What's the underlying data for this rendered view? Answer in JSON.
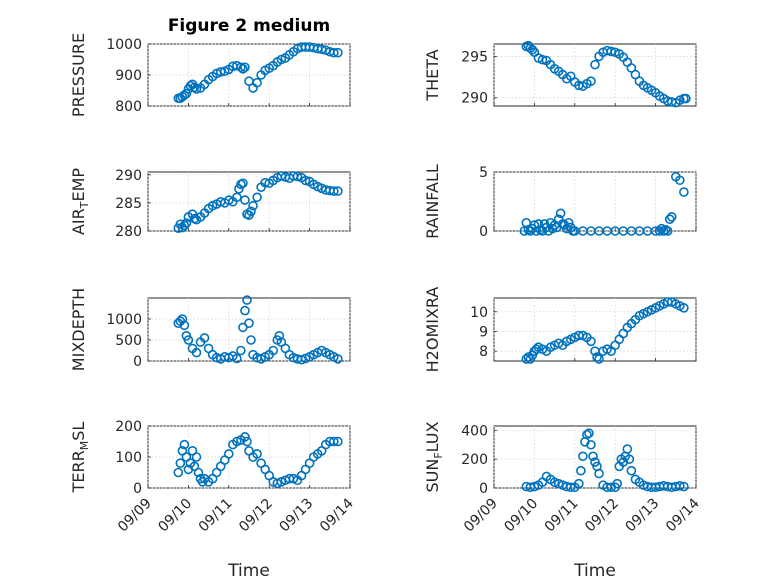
{
  "colors": {
    "marker": "#0072BD",
    "axis": "#262626",
    "grid": "#d0d0d0"
  },
  "chart_data": [
    {
      "type": "scatter",
      "title": "Figure 2 medium",
      "ylabel": "PRESSURE",
      "xlabel": "",
      "xticks": [
        "09/09",
        "09/10",
        "09/11",
        "09/12",
        "09/13",
        "09/14"
      ],
      "ylim": [
        800,
        1000
      ],
      "yticks": [
        800,
        900,
        1000
      ],
      "show_xticklabels": false,
      "grid": true,
      "series": [
        {
          "x": [
            9.75,
            9.8,
            9.85,
            9.9,
            9.95,
            10.0,
            10.05,
            10.1,
            10.15,
            10.2,
            10.3,
            10.4,
            10.5,
            10.6,
            10.7,
            10.8,
            10.9,
            11.0,
            11.1,
            11.2,
            11.3,
            11.35,
            11.4,
            11.5,
            11.6,
            11.7,
            11.8,
            11.9,
            12.0,
            12.1,
            12.2,
            12.3,
            12.4,
            12.5,
            12.6,
            12.7,
            12.8,
            12.9,
            13.0,
            13.1,
            13.2,
            13.3,
            13.4,
            13.5,
            13.6,
            13.7
          ],
          "y": [
            825,
            825,
            830,
            835,
            840,
            855,
            865,
            870,
            860,
            855,
            858,
            870,
            885,
            895,
            905,
            910,
            912,
            918,
            928,
            930,
            925,
            920,
            925,
            880,
            858,
            875,
            900,
            915,
            922,
            930,
            942,
            950,
            955,
            965,
            975,
            985,
            990,
            990,
            990,
            988,
            985,
            983,
            980,
            975,
            972,
            972
          ]
        }
      ]
    },
    {
      "type": "scatter",
      "title": "",
      "ylabel": "THETA",
      "xlabel": "",
      "xticks": [
        "09/09",
        "09/10",
        "09/11",
        "09/12",
        "09/13",
        "09/14"
      ],
      "ylim": [
        289,
        296.5
      ],
      "yticks": [
        290,
        295
      ],
      "show_xticklabels": false,
      "grid": true,
      "series": [
        {
          "x": [
            9.8,
            9.85,
            9.9,
            9.95,
            10.0,
            10.1,
            10.2,
            10.3,
            10.4,
            10.5,
            10.6,
            10.7,
            10.8,
            10.9,
            11.0,
            11.1,
            11.2,
            11.3,
            11.4,
            11.5,
            11.6,
            11.7,
            11.8,
            11.9,
            12.0,
            12.1,
            12.2,
            12.3,
            12.4,
            12.5,
            12.6,
            12.7,
            12.8,
            12.9,
            13.0,
            13.1,
            13.2,
            13.3,
            13.4,
            13.5,
            13.6,
            13.7,
            13.75
          ],
          "y": [
            296.2,
            296.3,
            296.0,
            295.8,
            295.5,
            294.8,
            294.6,
            294.5,
            294.0,
            293.5,
            293.2,
            292.8,
            292.3,
            292.6,
            291.9,
            291.5,
            291.4,
            291.7,
            292.0,
            294.0,
            295.0,
            295.5,
            295.7,
            295.6,
            295.5,
            295.3,
            294.9,
            294.3,
            293.6,
            292.8,
            292.0,
            291.5,
            291.2,
            290.9,
            290.6,
            290.2,
            289.9,
            289.6,
            289.5,
            289.4,
            289.7,
            289.9,
            289.9
          ]
        }
      ]
    },
    {
      "type": "scatter",
      "title": "",
      "ylabel": "AIR_TEMP",
      "xlabel": "",
      "xticks": [
        "09/09",
        "09/10",
        "09/11",
        "09/12",
        "09/13",
        "09/14"
      ],
      "ylim": [
        280,
        290.5
      ],
      "yticks": [
        280,
        285,
        290
      ],
      "show_xticklabels": false,
      "grid": true,
      "series": [
        {
          "x": [
            9.75,
            9.8,
            9.85,
            9.9,
            9.95,
            10.0,
            10.1,
            10.15,
            10.2,
            10.3,
            10.4,
            10.5,
            10.6,
            10.7,
            10.8,
            10.9,
            11.0,
            11.1,
            11.2,
            11.25,
            11.3,
            11.35,
            11.4,
            11.45,
            11.5,
            11.55,
            11.6,
            11.7,
            11.8,
            11.9,
            12.0,
            12.1,
            12.2,
            12.3,
            12.4,
            12.5,
            12.6,
            12.7,
            12.8,
            12.9,
            13.0,
            13.1,
            13.2,
            13.3,
            13.4,
            13.5,
            13.6,
            13.7
          ],
          "y": [
            280.5,
            281.2,
            280.6,
            281.0,
            281.4,
            282.5,
            283.0,
            282.2,
            282.0,
            282.5,
            283.2,
            284.0,
            284.5,
            284.8,
            285.2,
            285.0,
            285.5,
            285.2,
            286.0,
            287.5,
            288.3,
            288.5,
            285.5,
            283.0,
            282.8,
            283.5,
            284.5,
            286.0,
            287.8,
            288.6,
            288.5,
            289.0,
            289.5,
            289.8,
            289.6,
            289.4,
            289.8,
            289.7,
            289.5,
            289.0,
            288.8,
            288.3,
            287.9,
            287.6,
            287.3,
            287.2,
            287.1,
            287.1
          ]
        }
      ]
    },
    {
      "type": "scatter",
      "title": "",
      "ylabel": "RAINFALL",
      "xlabel": "",
      "xticks": [
        "09/09",
        "09/10",
        "09/11",
        "09/12",
        "09/13",
        "09/14"
      ],
      "ylim": [
        0,
        5
      ],
      "yticks": [
        0,
        5
      ],
      "show_xticklabels": false,
      "grid": true,
      "series": [
        {
          "x": [
            9.75,
            9.8,
            9.85,
            9.9,
            9.95,
            10.0,
            10.05,
            10.1,
            10.15,
            10.2,
            10.25,
            10.3,
            10.35,
            10.4,
            10.45,
            10.5,
            10.55,
            10.6,
            10.65,
            10.7,
            10.75,
            10.8,
            10.85,
            10.9,
            10.95,
            11.0,
            11.2,
            11.4,
            11.6,
            11.8,
            12.0,
            12.2,
            12.4,
            12.6,
            12.8,
            13.0,
            13.1,
            13.15,
            13.2,
            13.25,
            13.3,
            13.35,
            13.4,
            13.5,
            13.6,
            13.7
          ],
          "y": [
            0.0,
            0.7,
            0.1,
            0.0,
            0.2,
            0.5,
            0.0,
            0.6,
            0.1,
            0.0,
            0.6,
            0.3,
            0.0,
            0.7,
            0.2,
            0.5,
            0.3,
            1.0,
            1.5,
            0.6,
            0.5,
            0.2,
            0.7,
            0.3,
            0.0,
            0.0,
            0.0,
            0.0,
            0.0,
            0.0,
            0.0,
            0.0,
            0.0,
            0.0,
            0.0,
            0.0,
            0.0,
            0.2,
            0.0,
            0.1,
            0.0,
            1.0,
            1.2,
            4.6,
            4.3,
            3.3
          ]
        }
      ]
    },
    {
      "type": "scatter",
      "title": "",
      "ylabel": "MIXDEPTH",
      "xlabel": "",
      "xticks": [
        "09/09",
        "09/10",
        "09/11",
        "09/12",
        "09/13",
        "09/14"
      ],
      "ylim": [
        0,
        1500
      ],
      "yticks": [
        0,
        500,
        1000
      ],
      "show_xticklabels": false,
      "grid": true,
      "series": [
        {
          "x": [
            9.75,
            9.8,
            9.85,
            9.9,
            9.95,
            10.0,
            10.1,
            10.2,
            10.3,
            10.4,
            10.5,
            10.6,
            10.7,
            10.8,
            10.9,
            11.0,
            11.1,
            11.2,
            11.3,
            11.35,
            11.4,
            11.45,
            11.5,
            11.55,
            11.6,
            11.7,
            11.8,
            11.9,
            12.0,
            12.1,
            12.2,
            12.25,
            12.3,
            12.4,
            12.5,
            12.6,
            12.7,
            12.8,
            12.9,
            13.0,
            13.1,
            13.2,
            13.3,
            13.4,
            13.5,
            13.6,
            13.7
          ],
          "y": [
            900,
            950,
            1000,
            850,
            600,
            500,
            300,
            200,
            450,
            550,
            300,
            150,
            80,
            50,
            100,
            80,
            120,
            60,
            250,
            800,
            1200,
            1450,
            900,
            500,
            150,
            80,
            50,
            100,
            150,
            250,
            500,
            600,
            450,
            300,
            150,
            80,
            50,
            30,
            60,
            100,
            150,
            200,
            250,
            200,
            150,
            100,
            50
          ]
        }
      ]
    },
    {
      "type": "scatter",
      "title": "",
      "ylabel": "H2OMIXRA",
      "xlabel": "",
      "xticks": [
        "09/09",
        "09/10",
        "09/11",
        "09/12",
        "09/13",
        "09/14"
      ],
      "ylim": [
        7.5,
        10.7
      ],
      "yticks": [
        8,
        9,
        10
      ],
      "show_xticklabels": false,
      "grid": true,
      "series": [
        {
          "x": [
            9.8,
            9.85,
            9.9,
            9.95,
            10.0,
            10.05,
            10.1,
            10.2,
            10.3,
            10.4,
            10.5,
            10.6,
            10.7,
            10.8,
            10.9,
            11.0,
            11.1,
            11.2,
            11.3,
            11.4,
            11.5,
            11.55,
            11.6,
            11.7,
            11.8,
            11.9,
            12.0,
            12.1,
            12.2,
            12.3,
            12.4,
            12.5,
            12.6,
            12.7,
            12.8,
            12.9,
            13.0,
            13.1,
            13.2,
            13.3,
            13.4,
            13.5,
            13.6,
            13.7
          ],
          "y": [
            7.6,
            7.7,
            7.6,
            7.8,
            8.0,
            8.1,
            8.2,
            8.1,
            8.0,
            8.2,
            8.3,
            8.4,
            8.3,
            8.5,
            8.6,
            8.7,
            8.8,
            8.8,
            8.7,
            8.5,
            8.0,
            7.7,
            7.6,
            8.0,
            8.1,
            8.0,
            8.3,
            8.6,
            8.9,
            9.2,
            9.4,
            9.6,
            9.8,
            9.9,
            10.0,
            10.1,
            10.2,
            10.3,
            10.4,
            10.5,
            10.5,
            10.4,
            10.3,
            10.2
          ]
        }
      ]
    },
    {
      "type": "scatter",
      "title": "",
      "ylabel": "TERR_MSL",
      "xlabel": "Time",
      "xticks": [
        "09/09",
        "09/10",
        "09/11",
        "09/12",
        "09/13",
        "09/14"
      ],
      "ylim": [
        0,
        200
      ],
      "yticks": [
        0,
        100,
        200
      ],
      "show_xticklabels": true,
      "grid": true,
      "series": [
        {
          "x": [
            9.75,
            9.8,
            9.85,
            9.9,
            9.95,
            10.0,
            10.05,
            10.1,
            10.15,
            10.2,
            10.25,
            10.3,
            10.35,
            10.4,
            10.5,
            10.6,
            10.7,
            10.8,
            10.9,
            11.0,
            11.1,
            11.2,
            11.3,
            11.4,
            11.45,
            11.5,
            11.6,
            11.7,
            11.8,
            11.9,
            12.0,
            12.1,
            12.2,
            12.3,
            12.4,
            12.5,
            12.6,
            12.7,
            12.8,
            12.9,
            13.0,
            13.1,
            13.2,
            13.3,
            13.4,
            13.5,
            13.6,
            13.7
          ],
          "y": [
            50,
            80,
            120,
            140,
            100,
            60,
            80,
            120,
            70,
            100,
            50,
            30,
            20,
            30,
            20,
            30,
            50,
            70,
            90,
            110,
            140,
            150,
            155,
            165,
            150,
            120,
            100,
            110,
            80,
            60,
            40,
            20,
            15,
            20,
            25,
            30,
            30,
            25,
            40,
            60,
            80,
            100,
            110,
            120,
            140,
            150,
            150,
            150
          ]
        }
      ]
    },
    {
      "type": "scatter",
      "title": "",
      "ylabel": "SUN_FLUX",
      "xlabel": "Time",
      "xticks": [
        "09/09",
        "09/10",
        "09/11",
        "09/12",
        "09/13",
        "09/14"
      ],
      "ylim": [
        0,
        430
      ],
      "yticks": [
        0,
        200,
        400
      ],
      "show_xticklabels": true,
      "grid": true,
      "series": [
        {
          "x": [
            9.8,
            9.9,
            10.0,
            10.1,
            10.2,
            10.3,
            10.4,
            10.5,
            10.6,
            10.7,
            10.8,
            10.9,
            11.0,
            11.1,
            11.15,
            11.2,
            11.25,
            11.3,
            11.35,
            11.4,
            11.45,
            11.5,
            11.55,
            11.6,
            11.7,
            11.8,
            11.9,
            12.0,
            12.05,
            12.1,
            12.15,
            12.2,
            12.25,
            12.3,
            12.35,
            12.4,
            12.5,
            12.6,
            12.7,
            12.8,
            12.9,
            13.0,
            13.1,
            13.2,
            13.3,
            13.4,
            13.5,
            13.6,
            13.7
          ],
          "y": [
            10,
            5,
            10,
            20,
            40,
            80,
            60,
            40,
            30,
            20,
            10,
            5,
            5,
            30,
            120,
            220,
            320,
            370,
            380,
            300,
            220,
            180,
            150,
            100,
            20,
            5,
            5,
            5,
            30,
            150,
            200,
            180,
            220,
            270,
            200,
            120,
            60,
            40,
            20,
            10,
            5,
            5,
            10,
            15,
            10,
            5,
            10,
            15,
            10
          ]
        }
      ]
    }
  ]
}
